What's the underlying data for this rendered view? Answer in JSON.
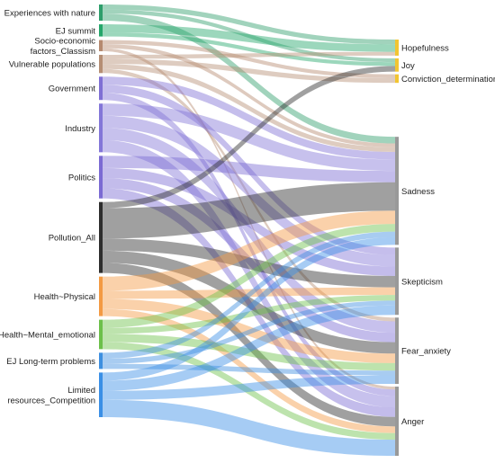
{
  "sources": [
    {
      "id": "nature",
      "label_lines": [
        "Experiences with nature"
      ],
      "color": "#2e9e6b"
    },
    {
      "id": "ej_summit",
      "label_lines": [
        "EJ summit"
      ],
      "color": "#24a66a"
    },
    {
      "id": "socio",
      "label_lines": [
        "Socio-economic",
        "factors_Classism"
      ],
      "color": "#b5896f"
    },
    {
      "id": "vulnerable",
      "label_lines": [
        "Vulnerable populations"
      ],
      "color": "#b58e74"
    },
    {
      "id": "government",
      "label_lines": [
        "Government"
      ],
      "color": "#7f6fd4"
    },
    {
      "id": "industry",
      "label_lines": [
        "Industry"
      ],
      "color": "#8376d8"
    },
    {
      "id": "politics",
      "label_lines": [
        "Politics"
      ],
      "color": "#7b6ad3"
    },
    {
      "id": "pollution",
      "label_lines": [
        "Pollution_All"
      ],
      "color": "#2d2d2d"
    },
    {
      "id": "health_phys",
      "label_lines": [
        "Health~Physical"
      ],
      "color": "#f39a43"
    },
    {
      "id": "health_mental",
      "label_lines": [
        "Health~Mental_emotional"
      ],
      "color": "#6cc04a"
    },
    {
      "id": "ej_longterm",
      "label_lines": [
        "EJ Long-term problems"
      ],
      "color": "#3d8fe0"
    },
    {
      "id": "limited",
      "label_lines": [
        "Limited",
        "resources_Competition"
      ],
      "color": "#3a8fe6"
    }
  ],
  "targets": [
    {
      "id": "hopefulness",
      "label": "Hopefulness",
      "color": "#f2c531"
    },
    {
      "id": "joy",
      "label": "Joy",
      "color": "#f2c531"
    },
    {
      "id": "conviction",
      "label": "Conviction_determination",
      "color": "#f2c531"
    },
    {
      "id": "sadness",
      "label": "Sadness",
      "color": "#999999"
    },
    {
      "id": "skepticism",
      "label": "Skepticism",
      "color": "#999999"
    },
    {
      "id": "fear",
      "label": "Fear_anxiety",
      "color": "#999999"
    },
    {
      "id": "anger",
      "label": "Anger",
      "color": "#999999"
    }
  ],
  "links": [
    {
      "source": "nature",
      "target": "hopefulness",
      "value": 5
    },
    {
      "source": "nature",
      "target": "joy",
      "value": 4
    },
    {
      "source": "nature",
      "target": "sadness",
      "value": 7
    },
    {
      "source": "ej_summit",
      "target": "hopefulness",
      "value": 8
    },
    {
      "source": "ej_summit",
      "target": "joy",
      "value": 4
    },
    {
      "source": "socio",
      "target": "conviction",
      "value": 4
    },
    {
      "source": "socio",
      "target": "sadness",
      "value": 4
    },
    {
      "source": "socio",
      "target": "anger",
      "value": 3
    },
    {
      "source": "vulnerable",
      "target": "hopefulness",
      "value": 4
    },
    {
      "source": "vulnerable",
      "target": "conviction",
      "value": 5
    },
    {
      "source": "vulnerable",
      "target": "sadness",
      "value": 5
    },
    {
      "source": "vulnerable",
      "target": "fear",
      "value": 4
    },
    {
      "source": "government",
      "target": "sadness",
      "value": 8
    },
    {
      "source": "government",
      "target": "skepticism",
      "value": 8
    },
    {
      "source": "government",
      "target": "anger",
      "value": 7
    },
    {
      "source": "industry",
      "target": "sadness",
      "value": 12
    },
    {
      "source": "industry",
      "target": "skepticism",
      "value": 12
    },
    {
      "source": "industry",
      "target": "fear",
      "value": 12
    },
    {
      "source": "industry",
      "target": "anger",
      "value": 12
    },
    {
      "source": "politics",
      "target": "sadness",
      "value": 12
    },
    {
      "source": "politics",
      "target": "skepticism",
      "value": 10
    },
    {
      "source": "politics",
      "target": "fear",
      "value": 10
    },
    {
      "source": "politics",
      "target": "anger",
      "value": 10
    },
    {
      "source": "pollution",
      "target": "joy",
      "value": 6
    },
    {
      "source": "pollution",
      "target": "sadness",
      "value": 30
    },
    {
      "source": "pollution",
      "target": "skepticism",
      "value": 12
    },
    {
      "source": "pollution",
      "target": "fear",
      "value": 12
    },
    {
      "source": "pollution",
      "target": "anger",
      "value": 10
    },
    {
      "source": "health_phys",
      "target": "sadness",
      "value": 14
    },
    {
      "source": "health_phys",
      "target": "skepticism",
      "value": 8
    },
    {
      "source": "health_phys",
      "target": "fear",
      "value": 10
    },
    {
      "source": "health_phys",
      "target": "anger",
      "value": 7
    },
    {
      "source": "health_mental",
      "target": "sadness",
      "value": 8
    },
    {
      "source": "health_mental",
      "target": "skepticism",
      "value": 6
    },
    {
      "source": "health_mental",
      "target": "fear",
      "value": 8
    },
    {
      "source": "health_mental",
      "target": "anger",
      "value": 7
    },
    {
      "source": "ej_longterm",
      "target": "sadness",
      "value": 6
    },
    {
      "source": "ej_longterm",
      "target": "skepticism",
      "value": 5
    },
    {
      "source": "ej_longterm",
      "target": "fear",
      "value": 5
    },
    {
      "source": "limited",
      "target": "sadness",
      "value": 8
    },
    {
      "source": "limited",
      "target": "skepticism",
      "value": 10
    },
    {
      "source": "limited",
      "target": "fear",
      "value": 9
    },
    {
      "source": "limited",
      "target": "anger",
      "value": 17
    }
  ]
}
